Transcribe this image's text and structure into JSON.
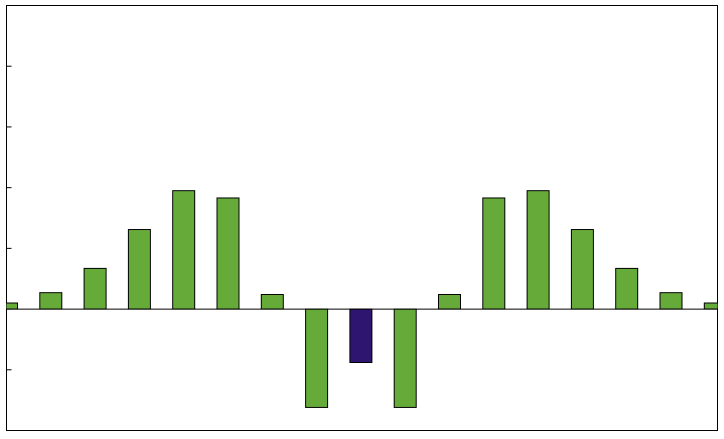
{
  "chart_data": {
    "type": "bar",
    "title": "",
    "xlabel": "",
    "ylabel": "",
    "ylim": [
      -2.0,
      5.0
    ],
    "ytick_step": 1,
    "grid": false,
    "legend": "none",
    "colors": {
      "positive": "#66aa3a",
      "highlight": "#2e1670",
      "outline": "#000000",
      "baseline": "#000000"
    },
    "values": [
      0.1,
      0.27,
      0.67,
      1.31,
      1.95,
      1.83,
      0.24,
      -1.62,
      -0.88,
      -1.62,
      0.24,
      1.83,
      1.95,
      1.31,
      0.67,
      0.27,
      0.1
    ],
    "highlight_index": 8
  }
}
